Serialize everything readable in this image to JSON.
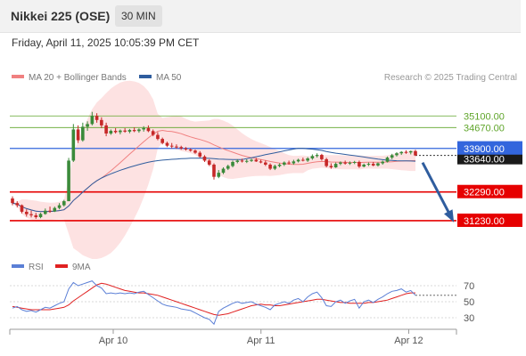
{
  "header": {
    "title": "Nikkei 225 (OSE)",
    "timeframe": "30 MIN"
  },
  "datetime": "Friday, April 11, 2025 10:05:39 PM CET",
  "credit": "Research © 2025 Trading Central",
  "colors": {
    "up": "#3a8a3a",
    "down": "#c62828",
    "ma20": "#f08080",
    "ma50": "#2f5d9e",
    "red_level": "#e60000",
    "blue_level": "#3366dd",
    "green_level": "#5fa52a",
    "rsi": "#5b7fd6",
    "rsi_ma": "#e02020",
    "band_fill": "#fde2e2"
  },
  "chart_data": {
    "type": "candlestick",
    "timeframe": "30 MIN",
    "legend": [
      {
        "name": "MA 20 + Bollinger Bands"
      },
      {
        "name": "MA 50"
      }
    ],
    "x_ticks": [
      "Apr 10",
      "Apr 11",
      "Apr 12"
    ],
    "ylim": [
      30900,
      35700
    ],
    "levels": [
      {
        "label": "35100.00",
        "value": 35100,
        "kind": "resistance"
      },
      {
        "label": "34670.00",
        "value": 34670,
        "kind": "resistance"
      },
      {
        "label": "33900.00",
        "value": 33900,
        "kind": "pivot"
      },
      {
        "label": "32290.00",
        "value": 32290,
        "kind": "support"
      },
      {
        "label": "31230.00",
        "value": 31230,
        "kind": "support"
      }
    ],
    "last_price": {
      "label": "33640.00",
      "value": 33640
    },
    "candles": [
      [
        32050,
        32130,
        31800,
        31880
      ],
      [
        31880,
        31950,
        31720,
        31800
      ],
      [
        31800,
        31830,
        31500,
        31560
      ],
      [
        31560,
        31650,
        31380,
        31470
      ],
      [
        31470,
        31600,
        31350,
        31430
      ],
      [
        31430,
        31520,
        31300,
        31360
      ],
      [
        31360,
        31520,
        31320,
        31480
      ],
      [
        31480,
        31680,
        31450,
        31600
      ],
      [
        31600,
        31750,
        31520,
        31570
      ],
      [
        31570,
        31750,
        31550,
        31700
      ],
      [
        31700,
        31880,
        31650,
        31800
      ],
      [
        31800,
        32000,
        31750,
        31950
      ],
      [
        31950,
        33550,
        31950,
        33450
      ],
      [
        33450,
        34800,
        33400,
        34600
      ],
      [
        34600,
        34750,
        34100,
        34200
      ],
      [
        34200,
        34850,
        34150,
        34700
      ],
      [
        34700,
        34900,
        34550,
        34800
      ],
      [
        34800,
        35250,
        34750,
        35100
      ],
      [
        35100,
        35200,
        34850,
        34950
      ],
      [
        34950,
        35050,
        34650,
        34750
      ],
      [
        34750,
        34850,
        34350,
        34450
      ],
      [
        34450,
        34600,
        34400,
        34550
      ],
      [
        34550,
        34650,
        34450,
        34500
      ],
      [
        34500,
        34600,
        34420,
        34560
      ],
      [
        34560,
        34650,
        34480,
        34520
      ],
      [
        34520,
        34620,
        34460,
        34580
      ],
      [
        34580,
        34680,
        34500,
        34540
      ],
      [
        34540,
        34640,
        34480,
        34600
      ],
      [
        34600,
        34720,
        34520,
        34650
      ],
      [
        34650,
        34750,
        34500,
        34540
      ],
      [
        34540,
        34600,
        34350,
        34400
      ],
      [
        34400,
        34500,
        34200,
        34250
      ],
      [
        34250,
        34300,
        34050,
        34100
      ],
      [
        34100,
        34150,
        33950,
        34000
      ],
      [
        34000,
        34100,
        33900,
        33970
      ],
      [
        33970,
        34050,
        33880,
        33950
      ],
      [
        33950,
        34000,
        33850,
        33900
      ],
      [
        33900,
        33950,
        33820,
        33860
      ],
      [
        33860,
        33900,
        33780,
        33820
      ],
      [
        33820,
        33860,
        33700,
        33740
      ],
      [
        33740,
        33800,
        33560,
        33600
      ],
      [
        33600,
        33650,
        33400,
        33450
      ],
      [
        33450,
        33500,
        33250,
        33300
      ],
      [
        33300,
        33350,
        32750,
        32850
      ],
      [
        32850,
        33100,
        32800,
        33000
      ],
      [
        33000,
        33200,
        32950,
        33150
      ],
      [
        33150,
        33300,
        33100,
        33250
      ],
      [
        33250,
        33450,
        33200,
        33400
      ],
      [
        33400,
        33500,
        33350,
        33450
      ],
      [
        33450,
        33520,
        33380,
        33420
      ],
      [
        33420,
        33500,
        33360,
        33440
      ],
      [
        33440,
        33520,
        33400,
        33480
      ],
      [
        33480,
        33550,
        33400,
        33420
      ],
      [
        33420,
        33480,
        33350,
        33380
      ],
      [
        33380,
        33450,
        33250,
        33300
      ],
      [
        33300,
        33350,
        33100,
        33150
      ],
      [
        33150,
        33300,
        33100,
        33250
      ],
      [
        33250,
        33350,
        33200,
        33300
      ],
      [
        33300,
        33420,
        33250,
        33380
      ],
      [
        33380,
        33450,
        33300,
        33350
      ],
      [
        33350,
        33480,
        33300,
        33420
      ],
      [
        33420,
        33520,
        33380,
        33480
      ],
      [
        33480,
        33560,
        33420,
        33450
      ],
      [
        33450,
        33580,
        33400,
        33530
      ],
      [
        33530,
        33680,
        33480,
        33620
      ],
      [
        33620,
        33720,
        33560,
        33660
      ],
      [
        33660,
        33700,
        33450,
        33500
      ],
      [
        33500,
        33550,
        33200,
        33250
      ],
      [
        33250,
        33350,
        33150,
        33200
      ],
      [
        33200,
        33380,
        33180,
        33330
      ],
      [
        33330,
        33420,
        33280,
        33380
      ],
      [
        33380,
        33450,
        33300,
        33340
      ],
      [
        33340,
        33420,
        33290,
        33370
      ],
      [
        33370,
        33440,
        33320,
        33400
      ],
      [
        33400,
        33450,
        33180,
        33230
      ],
      [
        33230,
        33340,
        33200,
        33300
      ],
      [
        33300,
        33380,
        33250,
        33330
      ],
      [
        33330,
        33400,
        33240,
        33270
      ],
      [
        33270,
        33380,
        33230,
        33350
      ],
      [
        33350,
        33450,
        33300,
        33410
      ],
      [
        33410,
        33600,
        33380,
        33560
      ],
      [
        33560,
        33700,
        33500,
        33650
      ],
      [
        33650,
        33760,
        33600,
        33720
      ],
      [
        33720,
        33800,
        33660,
        33770
      ],
      [
        33770,
        33830,
        33700,
        33750
      ],
      [
        33750,
        33820,
        33680,
        33800
      ],
      [
        33800,
        33850,
        33620,
        33640
      ]
    ],
    "forecast": {
      "from_value": 33640,
      "to_value": 31230
    },
    "rsi": {
      "name": "RSI",
      "ma_name": "9MA",
      "ylim": [
        20,
        80
      ],
      "ticks": [
        70,
        50,
        30
      ],
      "values": [
        42,
        44,
        40,
        38,
        39,
        37,
        40,
        43,
        42,
        45,
        48,
        50,
        66,
        74,
        70,
        72,
        74,
        76,
        70,
        67,
        60,
        61,
        60,
        61,
        60,
        61,
        60,
        62,
        63,
        59,
        55,
        51,
        47,
        45,
        44,
        43,
        41,
        40,
        39,
        36,
        33,
        30,
        28,
        22,
        38,
        42,
        45,
        48,
        50,
        48,
        49,
        50,
        47,
        45,
        43,
        40,
        46,
        48,
        50,
        48,
        52,
        54,
        50,
        56,
        60,
        62,
        55,
        45,
        44,
        50,
        52,
        48,
        51,
        53,
        42,
        50,
        52,
        49,
        53,
        56,
        60,
        63,
        64,
        66,
        62,
        64,
        58
      ],
      "ma": [
        44,
        43,
        42,
        41,
        40,
        40,
        40,
        40,
        40,
        41,
        42,
        43,
        46,
        51,
        55,
        59,
        63,
        67,
        71,
        73,
        72,
        70,
        68,
        66,
        64,
        63,
        62,
        61,
        61,
        60,
        59,
        58,
        56,
        54,
        52,
        50,
        48,
        46,
        44,
        42,
        40,
        38,
        36,
        34,
        33,
        34,
        35,
        37,
        39,
        41,
        43,
        45,
        46,
        47,
        46,
        46,
        45,
        45,
        46,
        47,
        48,
        49,
        50,
        51,
        52,
        53,
        53,
        52,
        51,
        50,
        49,
        49,
        48,
        48,
        48,
        48,
        49,
        49,
        50,
        51,
        52,
        54,
        56,
        58,
        60,
        61,
        61
      ]
    }
  }
}
